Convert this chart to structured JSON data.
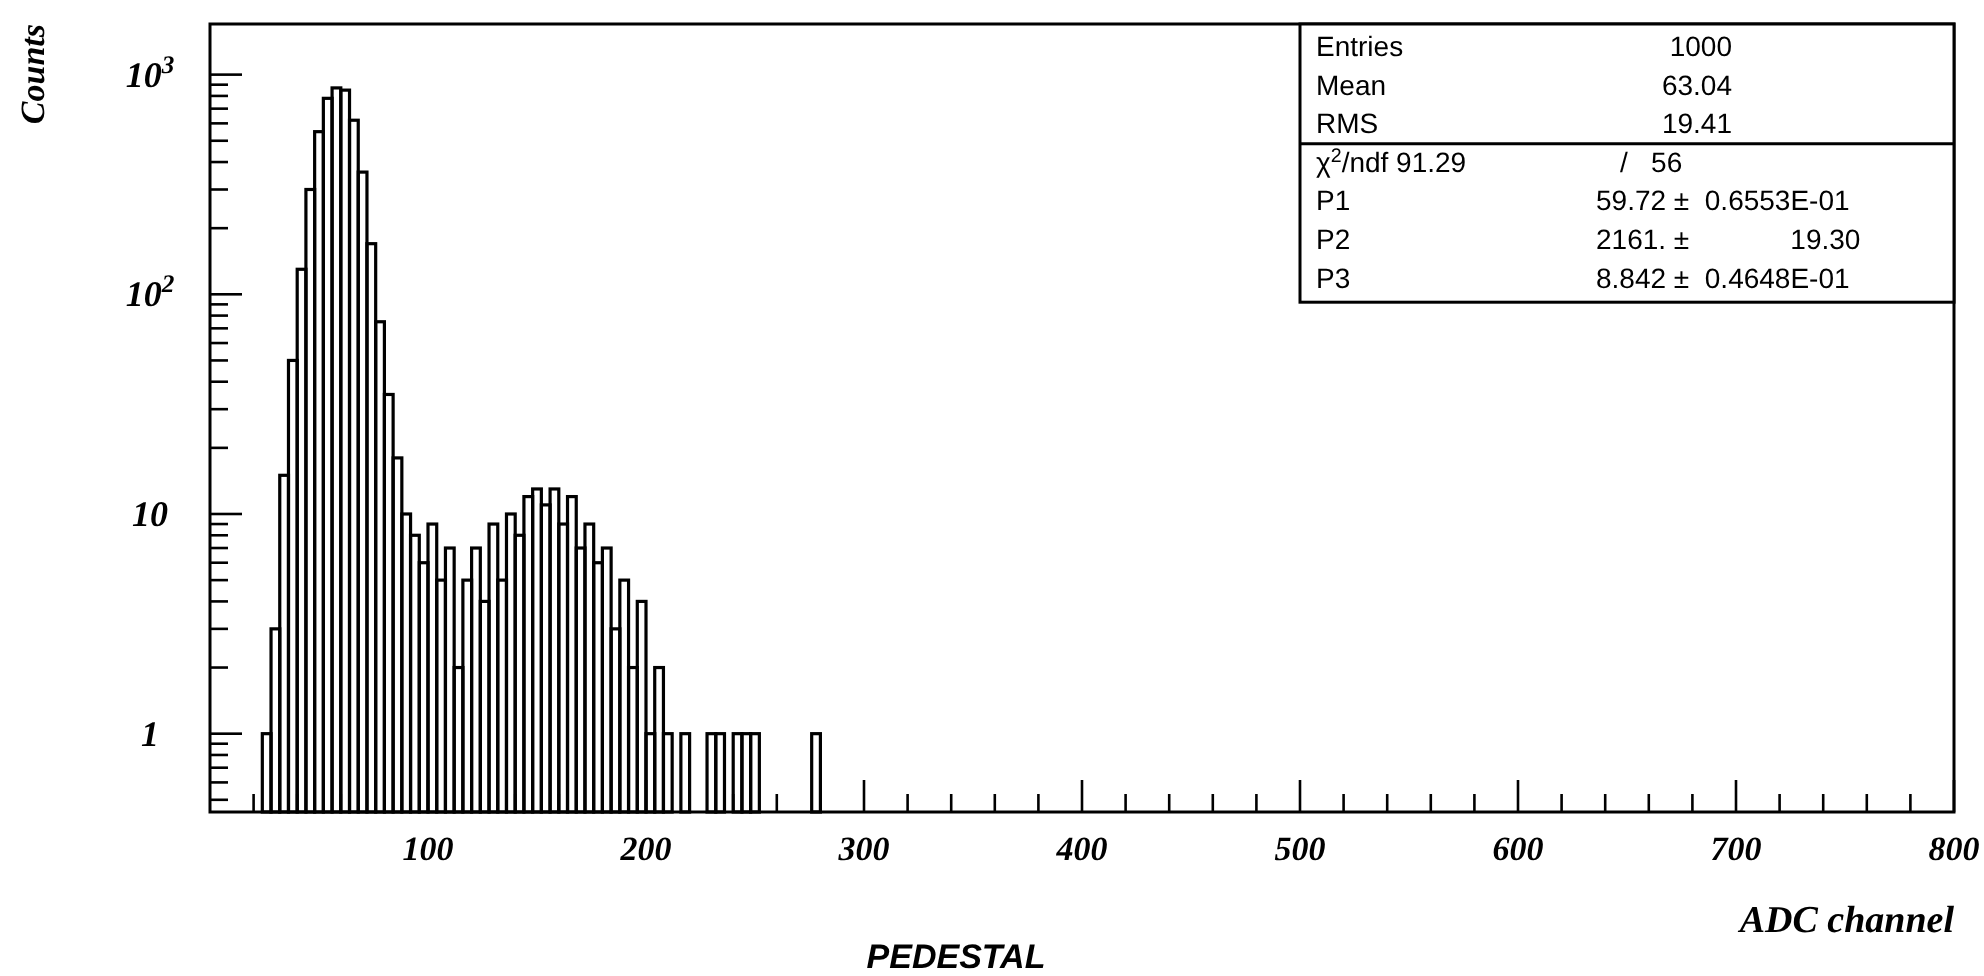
{
  "chart_data": {
    "type": "histogram",
    "title": "PEDESTAL",
    "xlabel": "ADC channel",
    "ylabel": "Counts",
    "bins": [
      20,
      24,
      28,
      32,
      36,
      40,
      44,
      48,
      52,
      56,
      60,
      64,
      68,
      72,
      76,
      80,
      84,
      88,
      92,
      96,
      100,
      104,
      108,
      112,
      116,
      120,
      124,
      128,
      132,
      136,
      140,
      144,
      148,
      152,
      156,
      160,
      164,
      168,
      172,
      176,
      180,
      184,
      188,
      192,
      196,
      200,
      204,
      208,
      212,
      216,
      220,
      224,
      228,
      232,
      236,
      240,
      244,
      248,
      252,
      256,
      260,
      264,
      268,
      272,
      276,
      280
    ],
    "values": [
      null,
      1,
      3,
      15,
      50,
      130,
      300,
      550,
      780,
      870,
      850,
      620,
      360,
      170,
      75,
      35,
      18,
      10,
      8,
      6,
      9,
      5,
      7,
      2,
      5,
      7,
      4,
      9,
      5,
      10,
      8,
      12,
      13,
      11,
      13,
      9,
      12,
      7,
      9,
      6,
      7,
      3,
      5,
      2,
      4,
      1,
      2,
      1,
      null,
      1,
      null,
      null,
      1,
      1,
      null,
      1,
      1,
      1,
      null,
      null,
      null,
      null,
      null,
      null,
      1
    ],
    "color": "#000000",
    "log": "y",
    "xlim": [
      0,
      800
    ],
    "ylim": [
      0.44,
      1700
    ],
    "xticks": [
      {
        "value": 20,
        "label": null
      },
      {
        "value": 40,
        "label": null
      },
      {
        "value": 60,
        "label": null
      },
      {
        "value": 80,
        "label": null
      },
      100,
      {
        "value": 120,
        "label": null
      },
      {
        "value": 140,
        "label": null
      },
      {
        "value": 160,
        "label": null
      },
      {
        "value": 180,
        "label": null
      },
      200,
      {
        "value": 220,
        "label": null
      },
      {
        "value": 240,
        "label": null
      },
      {
        "value": 260,
        "label": null
      },
      {
        "value": 280,
        "label": null
      },
      300,
      {
        "value": 320,
        "label": null
      },
      {
        "value": 340,
        "label": null
      },
      {
        "value": 360,
        "label": null
      },
      {
        "value": 380,
        "label": null
      },
      400,
      {
        "value": 420,
        "label": null
      },
      {
        "value": 440,
        "label": null
      },
      {
        "value": 460,
        "label": null
      },
      {
        "value": 480,
        "label": null
      },
      500,
      {
        "value": 520,
        "label": null
      },
      {
        "value": 540,
        "label": null
      },
      {
        "value": 560,
        "label": null
      },
      {
        "value": 580,
        "label": null
      },
      600,
      {
        "value": 620,
        "label": null
      },
      {
        "value": 640,
        "label": null
      },
      {
        "value": 660,
        "label": null
      },
      {
        "value": 680,
        "label": null
      },
      700,
      {
        "value": 720,
        "label": null
      },
      {
        "value": 740,
        "label": null
      },
      {
        "value": 760,
        "label": null
      },
      {
        "value": 780,
        "label": null
      },
      800
    ],
    "yticks": [
      {
        "value": 0.5,
        "label": null
      },
      {
        "value": 0.6,
        "label": null
      },
      {
        "value": 0.7,
        "label": null
      },
      {
        "value": 0.8,
        "label": null
      },
      {
        "value": 0.9,
        "label": null
      },
      1,
      {
        "value": 2,
        "label": null
      },
      {
        "value": 3,
        "label": null
      },
      {
        "value": 4,
        "label": null
      },
      {
        "value": 5,
        "label": null
      },
      {
        "value": 6,
        "label": null
      },
      {
        "value": 7,
        "label": null
      },
      {
        "value": 8,
        "label": null
      },
      {
        "value": 9,
        "label": null
      },
      10,
      {
        "value": 20,
        "label": null
      },
      {
        "value": 30,
        "label": null
      },
      {
        "value": 40,
        "label": null
      },
      {
        "value": 50,
        "label": null
      },
      {
        "value": 60,
        "label": null
      },
      {
        "value": 70,
        "label": null
      },
      {
        "value": 80,
        "label": null
      },
      {
        "value": 90,
        "label": null
      },
      {
        "value": 100,
        "label": "10$^{2}$"
      },
      {
        "value": 200,
        "label": null
      },
      {
        "value": 300,
        "label": null
      },
      {
        "value": 400,
        "label": null
      },
      {
        "value": 500,
        "label": null
      },
      {
        "value": 600,
        "label": null
      },
      {
        "value": 700,
        "label": null
      },
      {
        "value": 800,
        "label": null
      },
      {
        "value": 900,
        "label": null
      },
      {
        "value": 1000,
        "label": "10$^{3}$"
      }
    ],
    "annotations": [
      "Entries",
      "1000",
      "Mean",
      "63.04",
      "RMS",
      "19.41",
      "χ$^{2}$/ndf 91.29",
      "/   56",
      "P1",
      "59.72 ±  0.6553E-01",
      "P2",
      "2161. ±             19.30",
      "P3",
      "8.842 ±  0.4648E-01"
    ],
    "grid": false
  }
}
